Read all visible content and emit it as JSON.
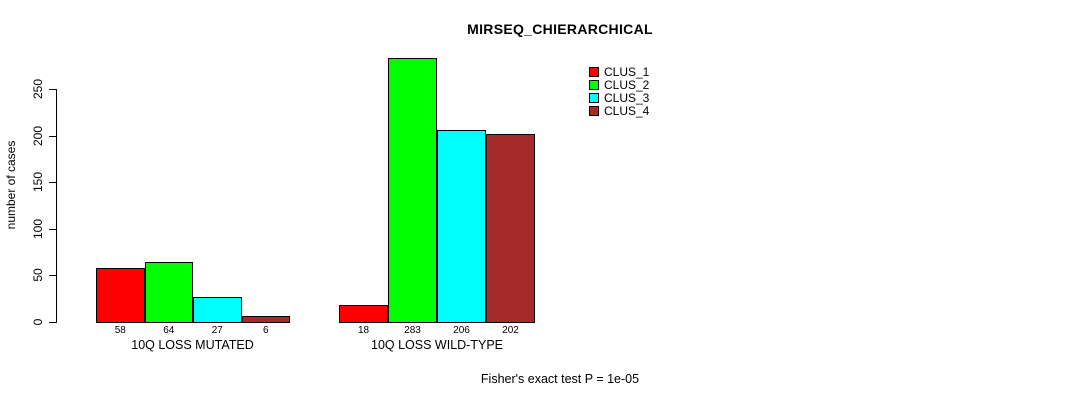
{
  "title": "MIRSEQ_CHIERARCHICAL",
  "footer": "Fisher's exact test P = 1e-05",
  "chart_data": {
    "type": "bar",
    "title": "MIRSEQ_CHIERARCHICAL",
    "xlabel": "",
    "ylabel": "number of cases",
    "categories": [
      "10Q LOSS MUTATED",
      "10Q LOSS WILD-TYPE"
    ],
    "series": [
      {
        "name": "CLUS_1",
        "color": "#ff0000",
        "values": [
          58,
          18
        ]
      },
      {
        "name": "CLUS_2",
        "color": "#00ff00",
        "values": [
          64,
          283
        ]
      },
      {
        "name": "CLUS_3",
        "color": "#00ffff",
        "values": [
          27,
          206
        ]
      },
      {
        "name": "CLUS_4",
        "color": "#a52a2a",
        "values": [
          6,
          202
        ]
      }
    ],
    "bar_value_labels": true,
    "yticks": [
      0,
      50,
      100,
      150,
      200,
      250
    ],
    "ylim": [
      0,
      290
    ],
    "grid": false,
    "legend_position": "top-right",
    "annotation": "Fisher's exact test P = 1e-05"
  }
}
